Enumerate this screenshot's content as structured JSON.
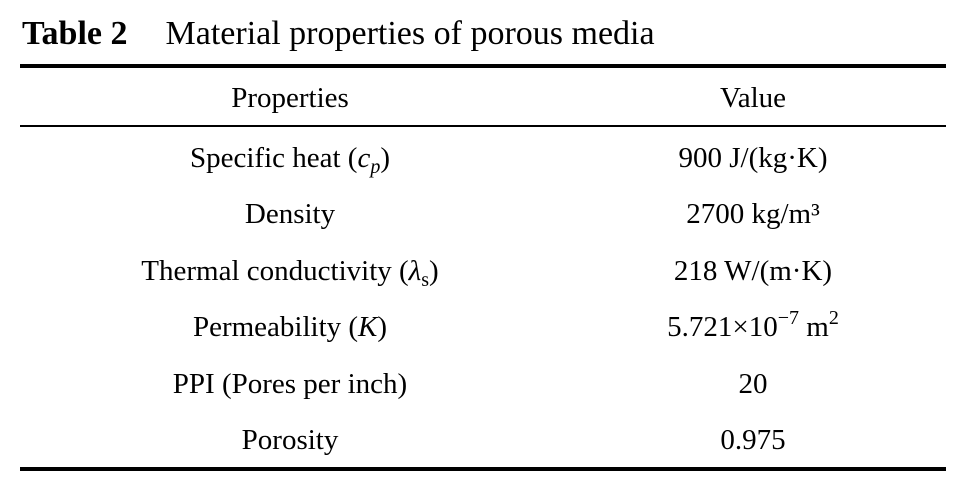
{
  "caption": {
    "label": "Table 2",
    "title": "Material properties of porous media"
  },
  "table": {
    "headers": [
      "Properties",
      "Value"
    ],
    "rows": [
      {
        "property": "Specific heat (",
        "symbol": "c",
        "subscript": "p",
        "close": ")",
        "value": "900 J/(kg·K)"
      },
      {
        "property": "Density",
        "value": "2700 kg/m³"
      },
      {
        "property": "Thermal conductivity (",
        "symbol": "λ",
        "subscript": "s",
        "close": ")",
        "value": "218 W/(m·K)"
      },
      {
        "property": "Permeability (",
        "symbol": "K",
        "close": ")",
        "value_base": "5.721×10",
        "value_exp": "−7",
        "value_unit": " m",
        "value_unit_exp": "2"
      },
      {
        "property": "PPI (Pores per inch)",
        "value": "20"
      },
      {
        "property": "Porosity",
        "value": "0.975"
      }
    ]
  }
}
